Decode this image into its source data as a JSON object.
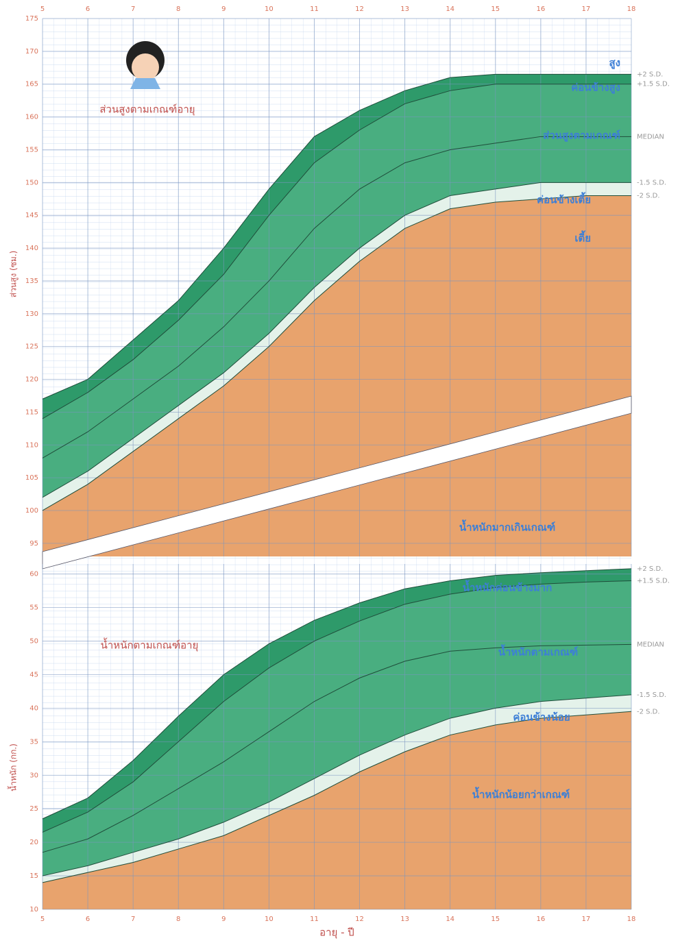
{
  "chart_data": [
    {
      "type": "area",
      "title": "ส่วนสูงตามเกณฑ์อายุ",
      "y_label": "ส่วนสูง (ซม.)",
      "x": [
        5,
        6,
        7,
        8,
        9,
        10,
        11,
        12,
        13,
        14,
        15,
        16,
        17,
        18
      ],
      "xlim": [
        5,
        18
      ],
      "xticks": [
        5,
        6,
        7,
        8,
        9,
        10,
        11,
        12,
        13,
        14,
        15,
        16,
        17,
        18
      ],
      "ylim": [
        93,
        175
      ],
      "yticks": [
        95,
        100,
        105,
        110,
        115,
        120,
        125,
        130,
        135,
        140,
        145,
        150,
        155,
        160,
        165,
        170,
        175
      ],
      "grid": true,
      "series": [
        {
          "name": "+2 S.D.",
          "color": "#2e9a6a",
          "values": [
            117,
            120,
            126,
            132,
            140,
            149,
            157,
            161,
            164,
            166,
            166.5,
            166.5,
            166.5,
            166.5
          ]
        },
        {
          "name": "+1.5 S.D.",
          "color": "#49ae80",
          "values": [
            114,
            118,
            123,
            129,
            136,
            145,
            153,
            158,
            162,
            164,
            165,
            165,
            165,
            165
          ]
        },
        {
          "name": "MEDIAN",
          "color": "#49ae80",
          "values": [
            108,
            112,
            117,
            122,
            128,
            135,
            143,
            149,
            153,
            155,
            156,
            157,
            157,
            157
          ]
        },
        {
          "name": "-1.5 S.D.",
          "color": "#e4f2ea",
          "values": [
            102,
            106,
            111,
            116,
            121,
            127,
            134,
            140,
            145,
            148,
            149,
            150,
            150,
            150
          ]
        },
        {
          "name": "-2 S.D.",
          "color": "#e8a36d",
          "values": [
            100,
            104,
            109,
            114,
            119,
            125,
            132,
            138,
            143,
            146,
            147,
            147.5,
            148,
            148
          ]
        }
      ],
      "annotations": [
        "สูง",
        "ค่อนข้างสูง",
        "ส่วนสูงตามเกณฑ์",
        "ค่อนข้างเตี้ย",
        "เตี้ย",
        "น้ำหนักมากเกินเกณฑ์"
      ]
    },
    {
      "type": "area",
      "title": "น้ำหนักตามเกณฑ์อายุ",
      "y_label": "น้ำหนัก (กก.)",
      "x_label": "อายุ - ปี",
      "x": [
        5,
        6,
        7,
        8,
        9,
        10,
        11,
        12,
        13,
        14,
        15,
        16,
        17,
        18
      ],
      "xlim": [
        5,
        18
      ],
      "xticks": [
        5,
        6,
        7,
        8,
        9,
        10,
        11,
        12,
        13,
        14,
        15,
        16,
        17,
        18
      ],
      "ylim": [
        10,
        61.5
      ],
      "yticks": [
        10,
        15,
        20,
        25,
        30,
        35,
        40,
        45,
        50,
        55,
        60
      ],
      "grid": true,
      "series": [
        {
          "name": "+2 S.D.",
          "color": "#2e9a6a",
          "values": [
            23.5,
            26.6,
            32.2,
            38.8,
            45,
            49.6,
            53.1,
            55.7,
            57.8,
            59,
            59.8,
            60.2,
            60.5,
            60.8
          ]
        },
        {
          "name": "+1.5 S.D.",
          "color": "#49ae80",
          "values": [
            21.5,
            24.5,
            29,
            35,
            41,
            46,
            50,
            53,
            55.5,
            57,
            58,
            58.5,
            58.8,
            59
          ]
        },
        {
          "name": "MEDIAN",
          "color": "#49ae80",
          "values": [
            18.5,
            20.5,
            24,
            28,
            32,
            36.5,
            41,
            44.5,
            47,
            48.5,
            49,
            49.3,
            49.4,
            49.5
          ]
        },
        {
          "name": "-1.5 S.D.",
          "color": "#e4f2ea",
          "values": [
            15,
            16.5,
            18.5,
            20.5,
            23,
            26,
            29.5,
            33,
            36,
            38.5,
            40,
            41,
            41.5,
            42
          ]
        },
        {
          "name": "-2 S.D.",
          "color": "#e8a36d",
          "values": [
            14,
            15.5,
            17,
            19,
            21,
            24,
            27,
            30.5,
            33.5,
            36,
            37.5,
            38.5,
            39,
            39.5
          ]
        }
      ],
      "annotations": [
        "น้ำหนักค่อนข้างมาก",
        "น้ำหนักตามเกณฑ์",
        "ค่อนข้างน้อย",
        "น้ำหนักน้อยกว่าเกณฑ์"
      ]
    }
  ]
}
